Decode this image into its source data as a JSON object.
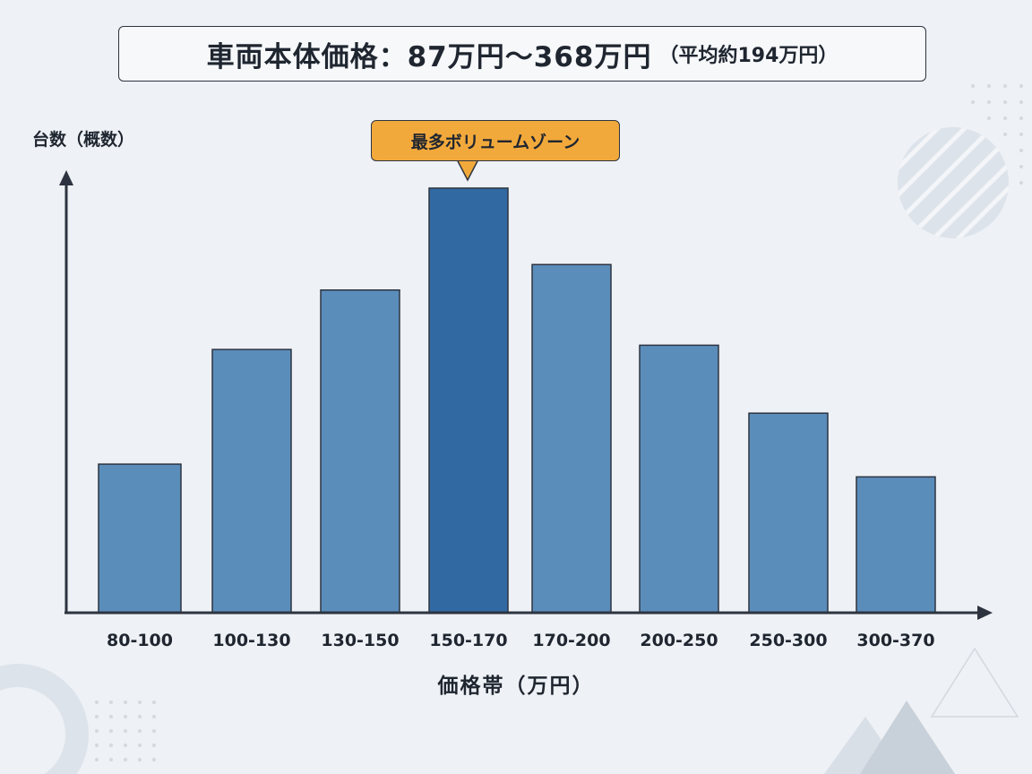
{
  "title": {
    "main": "車両本体価格：87万円～368万円",
    "sub": "（平均約194万円）"
  },
  "chart_data": {
    "type": "bar",
    "title": "車両本体価格：87万円～368万円（平均約194万円）",
    "xlabel": "価格帯（万円）",
    "ylabel": "台数（概数）",
    "categories": [
      "80-100",
      "100-130",
      "130-150",
      "150-170",
      "170-200",
      "200-250",
      "250-300",
      "300-370"
    ],
    "values": [
      35,
      62,
      76,
      100,
      82,
      63,
      47,
      32
    ],
    "ylim": [
      0,
      105
    ],
    "grid": false,
    "highlight_index": 3,
    "annotation": "最多ボリュームゾーン",
    "colors": {
      "bar": "#5b8dbb",
      "highlight": "#316aa3",
      "callout": "#f2a93b",
      "axis": "#2d3440"
    }
  }
}
